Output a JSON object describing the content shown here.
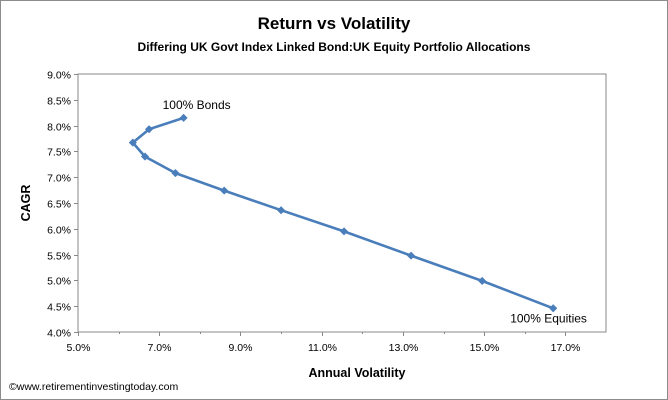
{
  "chart_data": {
    "type": "line",
    "title": "Return vs Volatility",
    "subtitle": "Differing UK Govt Index Linked Bond:UK Equity Portfolio Allocations",
    "xlabel": "Annual Volatility",
    "ylabel": "CAGR",
    "xlim": [
      5.0,
      18.0
    ],
    "ylim": [
      4.0,
      9.0
    ],
    "x_ticks": [
      5.0,
      7.0,
      9.0,
      11.0,
      13.0,
      15.0,
      17.0
    ],
    "x_tick_labels": [
      "5.0%",
      "7.0%",
      "9.0%",
      "11.0%",
      "13.0%",
      "15.0%",
      "17.0%"
    ],
    "y_ticks": [
      4.0,
      4.5,
      5.0,
      5.5,
      6.0,
      6.5,
      7.0,
      7.5,
      8.0,
      8.5,
      9.0
    ],
    "y_tick_labels": [
      "4.0%",
      "4.5%",
      "5.0%",
      "5.5%",
      "6.0%",
      "6.5%",
      "7.0%",
      "7.5%",
      "8.0%",
      "8.5%",
      "9.0%"
    ],
    "grid": false,
    "legend": "none",
    "series": [
      {
        "color": "#4a7ebb",
        "x": [
          7.6,
          6.75,
          6.35,
          6.65,
          7.4,
          8.6,
          10.0,
          11.55,
          13.2,
          14.95,
          16.7
        ],
        "y": [
          8.15,
          7.93,
          7.67,
          7.4,
          7.08,
          6.74,
          6.36,
          5.95,
          5.48,
          4.99,
          4.46
        ]
      }
    ],
    "annotations": [
      {
        "text": "100% Bonds",
        "x": 7.6,
        "y": 8.15
      },
      {
        "text": "100% Equities",
        "x": 16.7,
        "y": 4.46
      }
    ]
  },
  "footer": {
    "credit": "©www.retirementinvestingtoday.com"
  }
}
